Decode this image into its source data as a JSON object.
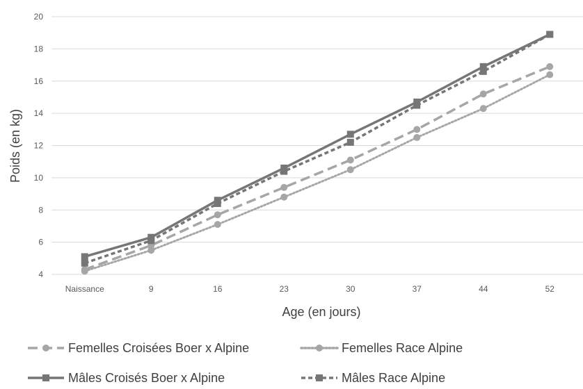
{
  "chart_data": {
    "type": "line",
    "xlabel": "Age (en jours)",
    "ylabel": "Poids (en kg)",
    "categories": [
      "Naissance",
      "9",
      "16",
      "23",
      "30",
      "37",
      "44",
      "52"
    ],
    "ylim": [
      4,
      20
    ],
    "yticks": [
      4,
      6,
      8,
      10,
      12,
      14,
      16,
      18,
      20
    ],
    "grid": true,
    "legend_position": "bottom",
    "series": [
      {
        "name": "Femelles Croisées Boer x Alpine",
        "values": [
          4.3,
          5.8,
          7.7,
          9.4,
          11.1,
          13.0,
          15.2,
          16.9
        ],
        "color": "#a6a6a6",
        "line_style": "long-dash",
        "marker": "circle"
      },
      {
        "name": "Femelles Race Alpine",
        "values": [
          4.2,
          5.5,
          7.1,
          8.8,
          10.5,
          12.5,
          14.3,
          16.4
        ],
        "color": "#a6a6a6",
        "line_style": "dotted",
        "marker": "circle"
      },
      {
        "name": "Mâles Croisés Boer x Alpine",
        "values": [
          5.1,
          6.3,
          8.6,
          10.6,
          12.7,
          14.7,
          16.9,
          18.9
        ],
        "color": "#767676",
        "line_style": "solid",
        "marker": "square"
      },
      {
        "name": "Mâles Race Alpine",
        "values": [
          4.7,
          6.1,
          8.4,
          10.4,
          12.2,
          14.5,
          16.6,
          18.9
        ],
        "color": "#767676",
        "line_style": "dashed",
        "marker": "square"
      }
    ]
  }
}
